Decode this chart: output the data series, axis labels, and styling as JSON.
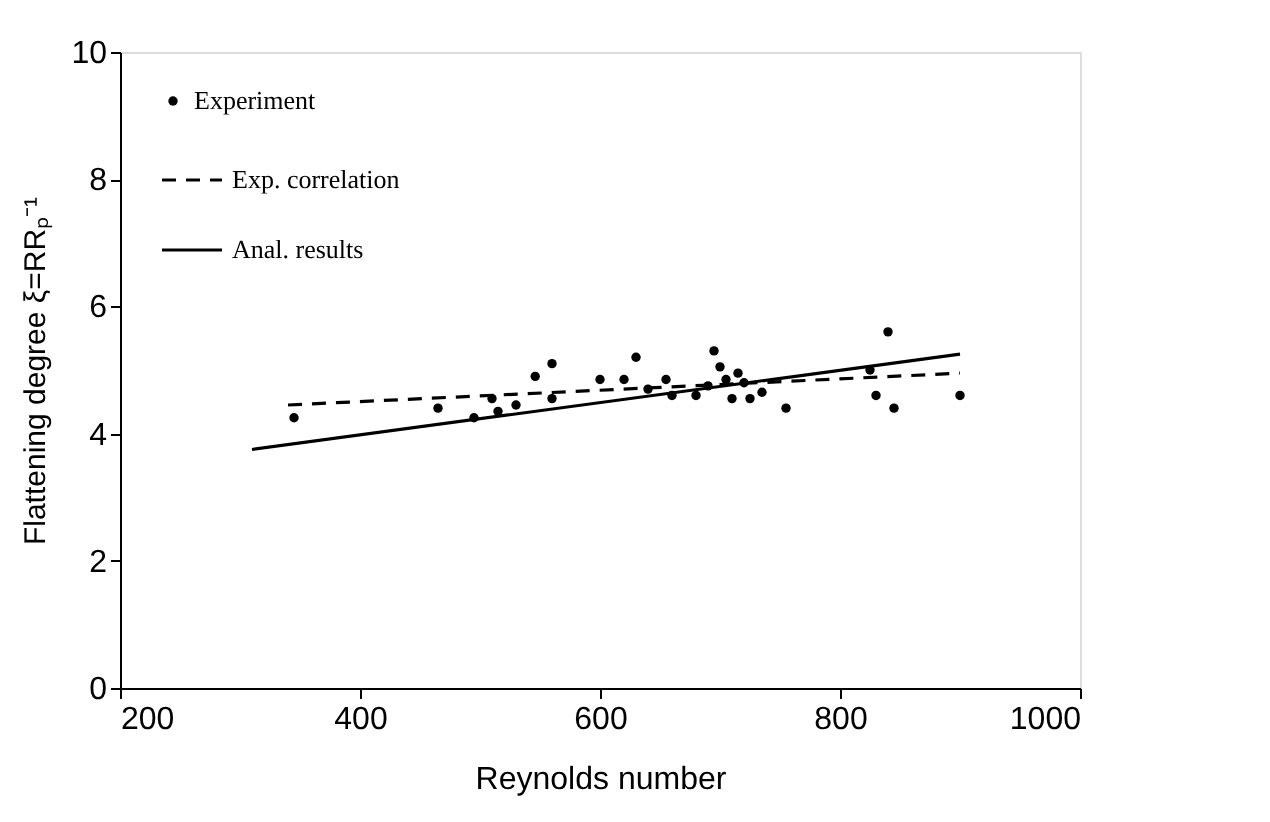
{
  "chart_data": {
    "type": "scatter",
    "xlabel": "Reynolds number",
    "ylabel": "Flattening degree ξ=RRₚ⁻¹",
    "xlim": [
      200,
      1000
    ],
    "ylim": [
      0,
      10
    ],
    "xticks": [
      200,
      400,
      600,
      800,
      1000
    ],
    "yticks": [
      0,
      2,
      4,
      6,
      8,
      10
    ],
    "grid": false,
    "legend": "top left",
    "series": [
      {
        "name": "Experiment",
        "marker": "circle",
        "color": "#000000",
        "x": [
          345,
          465,
          495,
          510,
          515,
          530,
          546,
          560,
          560,
          600,
          620,
          630,
          640,
          655,
          660,
          680,
          690,
          695,
          700,
          705,
          710,
          715,
          720,
          725,
          735,
          755,
          825,
          830,
          840,
          845,
          900
        ],
        "values": [
          4.25,
          4.4,
          4.25,
          4.55,
          4.35,
          4.45,
          4.9,
          5.1,
          4.55,
          4.85,
          4.85,
          5.2,
          4.7,
          4.85,
          4.6,
          4.6,
          4.75,
          5.3,
          5.05,
          4.85,
          4.55,
          4.95,
          4.8,
          4.55,
          4.65,
          4.4,
          5.0,
          4.6,
          5.6,
          4.4,
          4.6
        ]
      },
      {
        "name": "Exp. correlation",
        "type": "line",
        "line_style": "dashed",
        "color": "#000000",
        "x": [
          340,
          900
        ],
        "values": [
          4.45,
          4.95
        ]
      },
      {
        "name": "Anal. results",
        "type": "line",
        "line_style": "solid",
        "color": "#000000",
        "x": [
          310,
          900
        ],
        "values": [
          3.75,
          5.25
        ]
      }
    ]
  }
}
